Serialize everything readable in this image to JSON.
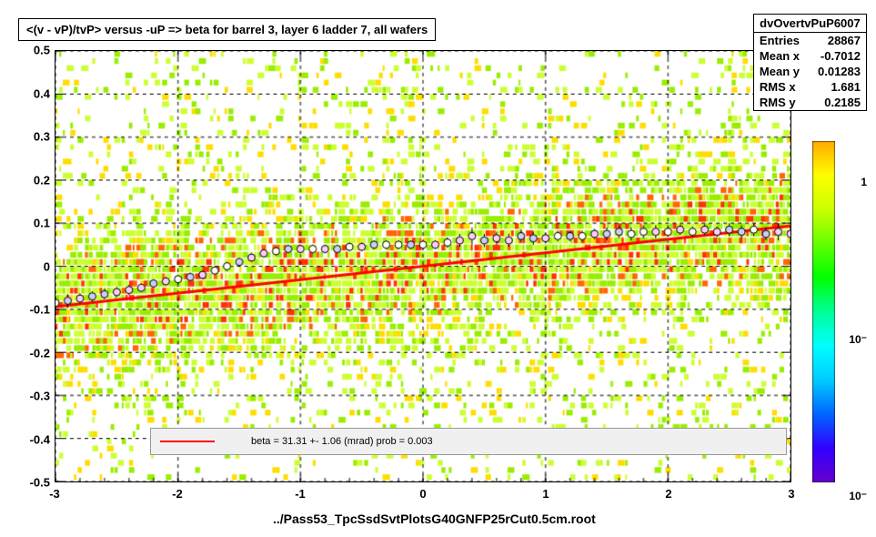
{
  "title": "<(v - vP)/tvP> versus  -uP => beta for barrel 3, layer 6 ladder 7, all wafers",
  "stats": {
    "name": "dvOvertvPuP6007",
    "entries": "28867",
    "meanx": "-0.7012",
    "meany": "0.01283",
    "rmsx": "1.681",
    "rmsy": "0.2185"
  },
  "footer": "../Pass53_TpcSsdSvtPlotsG40GNFP25rCut0.5cm.root",
  "legend": "beta =   31.31 +-  1.06 (mrad) prob = 0.003",
  "axes": {
    "xmin": -3,
    "xmax": 3,
    "xstep": 1,
    "ymin": -0.5,
    "ymax": 0.5,
    "ystep": 0.1,
    "xticks": [
      "-3",
      "-2",
      "-1",
      "0",
      "1",
      "2",
      "3"
    ],
    "yticks": [
      "-0.5",
      "-0.4",
      "-0.3",
      "-0.2",
      "-0.1",
      "0",
      "0.1",
      "0.2",
      "0.3",
      "0.4",
      "0.5"
    ]
  },
  "colorbar": {
    "labels": [
      "1",
      "10⁻",
      "10⁻"
    ],
    "positions": [
      0.12,
      0.58,
      1.04
    ],
    "gradient": [
      "#ffaa00",
      "#ffff00",
      "#ccff00",
      "#66ff00",
      "#00ff00",
      "#00ff99",
      "#00ffff",
      "#00ccff",
      "#0066ff",
      "#3300ff",
      "#6600cc"
    ]
  },
  "fit": {
    "slope": 0.03131,
    "intercept": 0.0,
    "color": "#ff0000",
    "width": 3
  },
  "scatter_density": {
    "bg_colors": [
      "#ccff33",
      "#99ee00",
      "#ffdd00",
      "#ff6600",
      "#ff3300"
    ],
    "n_cells_x": 200,
    "n_cells_y": 60
  },
  "profile_points": {
    "color": "#000000",
    "fill_colors": [
      "#ffccff",
      "#ccccff",
      "#ffffff"
    ],
    "marker_size": 4,
    "data": [
      [
        -3,
        -0.085,
        0.015
      ],
      [
        -2.9,
        -0.08,
        0.015
      ],
      [
        -2.8,
        -0.075,
        0.012
      ],
      [
        -2.7,
        -0.07,
        0.012
      ],
      [
        -2.6,
        -0.065,
        0.012
      ],
      [
        -2.5,
        -0.06,
        0.012
      ],
      [
        -2.4,
        -0.055,
        0.012
      ],
      [
        -2.3,
        -0.05,
        0.01
      ],
      [
        -2.2,
        -0.04,
        0.01
      ],
      [
        -2.1,
        -0.035,
        0.01
      ],
      [
        -2.0,
        -0.03,
        0.01
      ],
      [
        -1.9,
        -0.025,
        0.01
      ],
      [
        -1.8,
        -0.02,
        0.01
      ],
      [
        -1.7,
        -0.01,
        0.01
      ],
      [
        -1.6,
        0.0,
        0.01
      ],
      [
        -1.5,
        0.01,
        0.01
      ],
      [
        -1.4,
        0.02,
        0.01
      ],
      [
        -1.3,
        0.03,
        0.01
      ],
      [
        -1.2,
        0.035,
        0.01
      ],
      [
        -1.1,
        0.04,
        0.01
      ],
      [
        -1.0,
        0.04,
        0.01
      ],
      [
        -0.9,
        0.04,
        0.01
      ],
      [
        -0.8,
        0.04,
        0.01
      ],
      [
        -0.7,
        0.04,
        0.01
      ],
      [
        -0.6,
        0.045,
        0.01
      ],
      [
        -0.5,
        0.045,
        0.01
      ],
      [
        -0.4,
        0.05,
        0.01
      ],
      [
        -0.3,
        0.05,
        0.01
      ],
      [
        -0.2,
        0.05,
        0.01
      ],
      [
        -0.1,
        0.05,
        0.01
      ],
      [
        0.0,
        0.05,
        0.01
      ],
      [
        0.1,
        0.05,
        0.01
      ],
      [
        0.2,
        0.055,
        0.012
      ],
      [
        0.3,
        0.06,
        0.015
      ],
      [
        0.4,
        0.07,
        0.02
      ],
      [
        0.5,
        0.06,
        0.015
      ],
      [
        0.6,
        0.065,
        0.015
      ],
      [
        0.7,
        0.06,
        0.015
      ],
      [
        0.8,
        0.07,
        0.015
      ],
      [
        0.9,
        0.065,
        0.015
      ],
      [
        1.0,
        0.065,
        0.012
      ],
      [
        1.1,
        0.07,
        0.012
      ],
      [
        1.2,
        0.07,
        0.012
      ],
      [
        1.3,
        0.07,
        0.012
      ],
      [
        1.4,
        0.075,
        0.012
      ],
      [
        1.5,
        0.075,
        0.015
      ],
      [
        1.6,
        0.08,
        0.015
      ],
      [
        1.7,
        0.075,
        0.015
      ],
      [
        1.8,
        0.08,
        0.015
      ],
      [
        1.9,
        0.08,
        0.015
      ],
      [
        2.0,
        0.08,
        0.012
      ],
      [
        2.1,
        0.085,
        0.012
      ],
      [
        2.2,
        0.08,
        0.012
      ],
      [
        2.3,
        0.085,
        0.012
      ],
      [
        2.4,
        0.08,
        0.012
      ],
      [
        2.5,
        0.085,
        0.015
      ],
      [
        2.6,
        0.08,
        0.015
      ],
      [
        2.7,
        0.085,
        0.015
      ],
      [
        2.8,
        0.075,
        0.015
      ],
      [
        2.9,
        0.08,
        0.02
      ],
      [
        3.0,
        0.075,
        0.02
      ]
    ]
  }
}
